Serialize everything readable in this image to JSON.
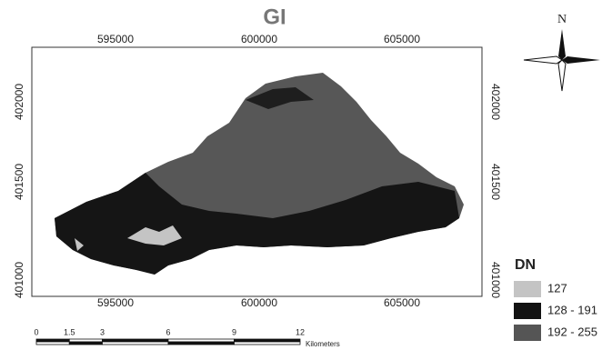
{
  "title": "GI",
  "north_arrow": "N",
  "x_coordinates": [
    595000,
    600000,
    605000
  ],
  "y_coordinates": [
    402000,
    401500,
    401000
  ],
  "scale_bar": {
    "ticks": [
      0,
      1.5,
      3,
      6,
      9,
      12
    ],
    "unit": "Kilometers"
  },
  "legend": {
    "title": "DN",
    "items": [
      {
        "label": "127",
        "color": "#c4c4c4"
      },
      {
        "label": "128 - 191",
        "color": "#121212"
      },
      {
        "label": "192 - 255",
        "color": "#555555"
      }
    ]
  }
}
